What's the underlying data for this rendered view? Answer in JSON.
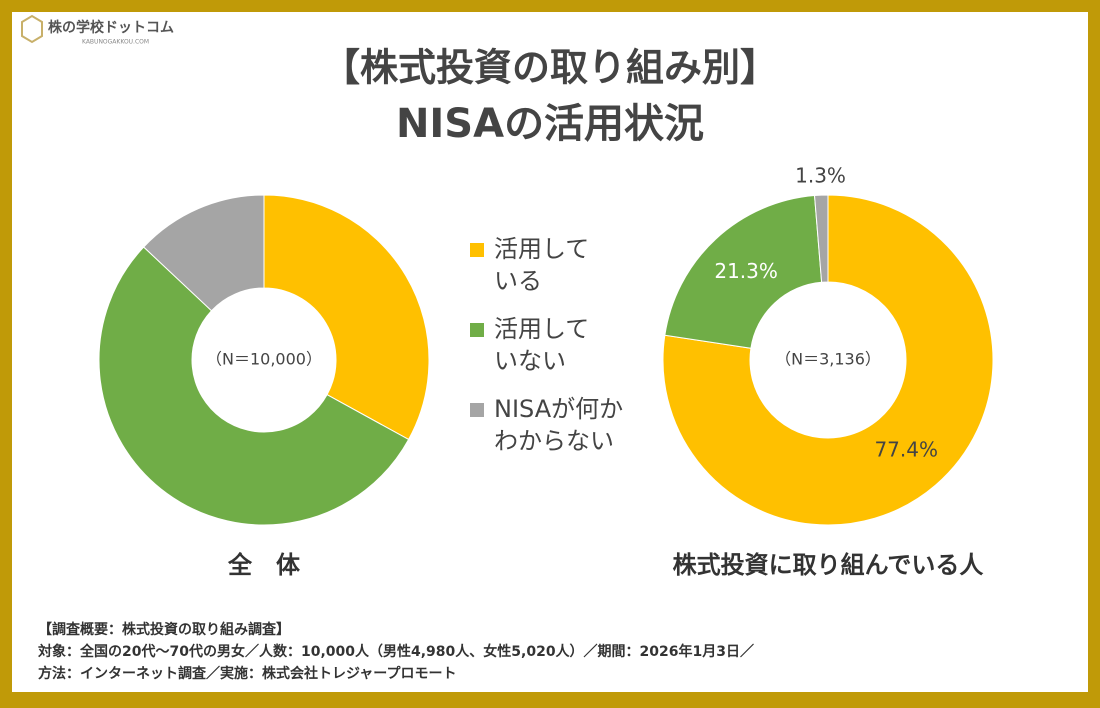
{
  "logo": {
    "name": "株の学校ドットコム",
    "sub": "KABUNOGAKKOU.COM"
  },
  "title": [
    "【株式投資の取り組み別】",
    "NISAの活用状況"
  ],
  "legend": {
    "labels": [
      "活用して\nいる",
      "活用して\nいない",
      "NISAが何か\nわからない"
    ],
    "colors": [
      "#ffc000",
      "#70ad47",
      "#a5a5a5"
    ]
  },
  "chart_data": [
    {
      "type": "pie",
      "title": "全　体",
      "note": "（N＝10,000）",
      "values": [
        33,
        54,
        13
      ]
    },
    {
      "type": "pie",
      "title": "株式投資に取り組んでいる人",
      "note": "（N＝3,136）",
      "values": [
        77.4,
        21.3,
        1.3
      ],
      "value_labels": [
        "77.4%",
        "21.3%",
        "1.3%"
      ],
      "value_label_colors": [
        "#444444",
        "#ffffff",
        "#444444"
      ]
    }
  ],
  "footnote": [
    "【調査概要：株式投資の取り組み調査】",
    "対象：全国の20代～70代の男女／人数：10,000人（男性4,980人、女性5,020人）／期間：2026年1月3日／",
    "方法：インターネット調査／実施：株式会社トレジャープロモート"
  ]
}
